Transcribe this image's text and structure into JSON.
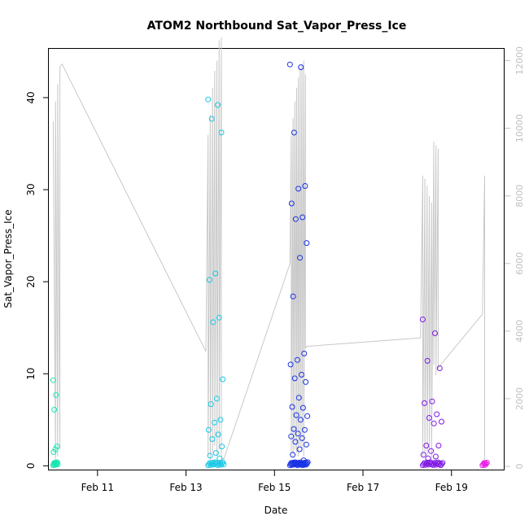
{
  "chart_data": {
    "type": "scatter",
    "title": "ATOM2 Northbound Sat_Vapor_Press_Ice",
    "xlabel": "Date",
    "ylabel": "Sat_Vapor_Press_Ice",
    "x_ticks": [
      "Feb 11",
      "Feb 13",
      "Feb 15",
      "Feb 17",
      "Feb 19"
    ],
    "x_tick_days": [
      11,
      13,
      15,
      17,
      19
    ],
    "xlim": [
      9.9,
      20.2
    ],
    "ylim": [
      -0.5,
      45.3
    ],
    "y_ticks": [
      0,
      10,
      20,
      30,
      40
    ],
    "y2_ticks": [
      0,
      2000,
      4000,
      6000,
      8000,
      10000,
      12000
    ],
    "y2lim": [
      -120,
      12350
    ],
    "grid": false,
    "point_clusters": [
      {
        "day_start": 10.0,
        "day_end": 10.1,
        "color": "#19e5b2",
        "high": [
          9.3,
          7.7,
          6.1,
          2.1,
          1.8,
          1.5
        ],
        "low_count": 10
      },
      {
        "day_start": 13.5,
        "day_end": 13.85,
        "color": "#19c8e5",
        "high": [
          39.8,
          39.2,
          37.7,
          36.2,
          20.9,
          20.2,
          16.1,
          15.6,
          9.4,
          7.3,
          6.7,
          5.0,
          4.7,
          3.9,
          3.4,
          2.9,
          2.1,
          1.4,
          1.1,
          0.8
        ],
        "low_count": 18
      },
      {
        "day_start": 15.35,
        "day_end": 15.75,
        "color": "#1932e5",
        "high": [
          43.6,
          43.3,
          36.2,
          30.4,
          30.1,
          28.5,
          27.0,
          26.8,
          24.2,
          22.6,
          18.4,
          12.2,
          11.5,
          11.0,
          9.9,
          9.5,
          9.1,
          7.4,
          6.4,
          6.3,
          5.5,
          5.4,
          5.0,
          4.0,
          3.9,
          3.5,
          3.2,
          3.0,
          2.6,
          2.3,
          1.8,
          1.2,
          0.6
        ],
        "low_count": 28
      },
      {
        "day_start": 18.35,
        "day_end": 18.8,
        "color": "#7f19e5",
        "high": [
          15.9,
          14.4,
          11.4,
          10.6,
          7.0,
          6.8,
          5.6,
          5.2,
          4.8,
          4.6,
          2.2,
          2.2,
          1.6,
          1.2,
          1.0,
          0.8
        ],
        "low_count": 22
      },
      {
        "day_start": 19.7,
        "day_end": 19.8,
        "color": "#e519e5",
        "high": [
          0.3
        ],
        "low_count": 6
      }
    ],
    "secondary_line": {
      "color": "#c8c8c8",
      "x": [
        10.0,
        10.05,
        10.05,
        10.1,
        10.1,
        10.15,
        10.15,
        10.2,
        13.45,
        13.5,
        13.5,
        13.55,
        13.55,
        13.6,
        13.6,
        13.65,
        13.65,
        13.7,
        13.7,
        13.75,
        13.75,
        13.8,
        13.8,
        13.85,
        15.35,
        15.38,
        15.38,
        15.42,
        15.42,
        15.46,
        15.46,
        15.5,
        15.5,
        15.54,
        15.54,
        15.58,
        15.58,
        15.62,
        15.62,
        15.66,
        15.66,
        15.7,
        15.7,
        15.74,
        18.3,
        18.35,
        18.35,
        18.4,
        18.4,
        18.45,
        18.45,
        18.5,
        18.5,
        18.55,
        18.55,
        18.6,
        18.6,
        18.65,
        18.65,
        18.7,
        18.7,
        18.75,
        19.7,
        19.75,
        19.75
      ],
      "y2": [
        10200,
        200,
        10800,
        300,
        11300,
        500,
        11800,
        11900,
        3400,
        9800,
        300,
        10400,
        200,
        11200,
        400,
        11700,
        600,
        12000,
        300,
        12600,
        500,
        12700,
        300,
        200,
        6000,
        9800,
        400,
        10300,
        300,
        10800,
        500,
        11200,
        400,
        11500,
        300,
        11800,
        600,
        11900,
        500,
        12000,
        300,
        11600,
        3500,
        3550,
        3800,
        8600,
        300,
        8500,
        400,
        8300,
        300,
        8000,
        500,
        7800,
        200,
        9600,
        3000,
        9500,
        2700,
        9400,
        2900,
        3000,
        4500,
        8600,
        200
      ]
    }
  }
}
